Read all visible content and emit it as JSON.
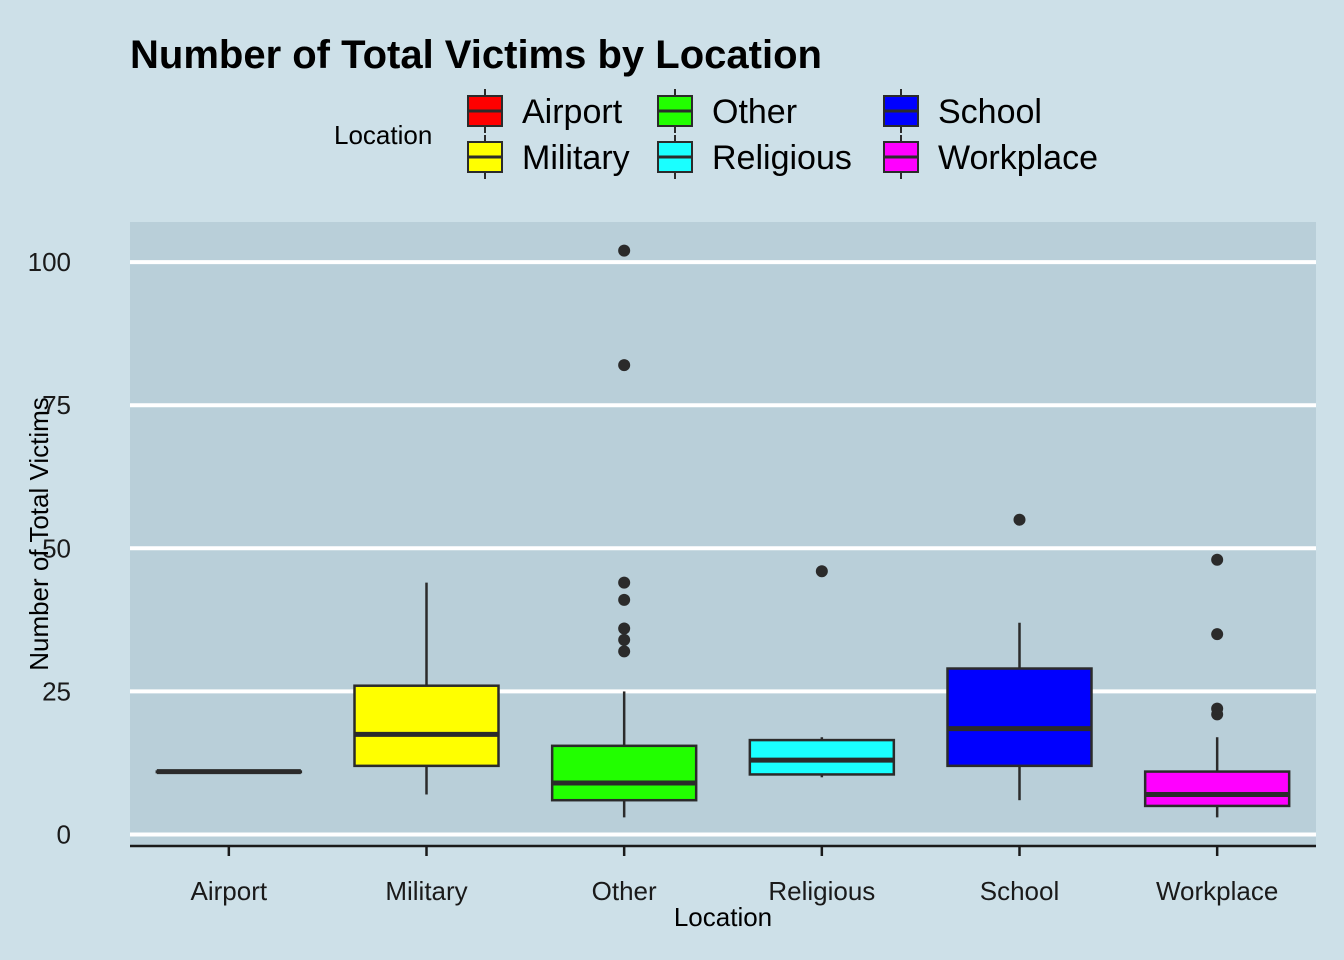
{
  "chart_data": {
    "type": "box",
    "title": "Number of Total Victims by Location",
    "xlabel": "Location",
    "ylabel": "Number of Total Victims",
    "ylim": [
      -2,
      107
    ],
    "yticks": [
      0,
      25,
      50,
      75,
      100
    ],
    "grid": "horizontal major lines",
    "legend": {
      "title": "Location",
      "placement": "top",
      "entries": [
        "Airport",
        "Other",
        "School",
        "Military",
        "Religious",
        "Workplace"
      ]
    },
    "categories": [
      "Airport",
      "Military",
      "Other",
      "Religious",
      "School",
      "Workplace"
    ],
    "series": [
      {
        "name": "Airport",
        "color": "#ff0000",
        "min": 11,
        "q1": 11,
        "median": 11,
        "q3": 11,
        "max": 11,
        "outliers": []
      },
      {
        "name": "Military",
        "color": "#ffff00",
        "min": 7,
        "q1": 12,
        "median": 17.5,
        "q3": 26,
        "max": 44,
        "outliers": []
      },
      {
        "name": "Other",
        "color": "#22ff00",
        "min": 3,
        "q1": 6,
        "median": 9,
        "q3": 15.5,
        "max": 25,
        "outliers": [
          32,
          34,
          36,
          41,
          44,
          82,
          102
        ]
      },
      {
        "name": "Religious",
        "color": "#1affff",
        "min": 10,
        "q1": 10.5,
        "median": 13,
        "q3": 16.5,
        "max": 17,
        "outliers": [
          46
        ]
      },
      {
        "name": "School",
        "color": "#0000ff",
        "min": 6,
        "q1": 12,
        "median": 18.5,
        "q3": 29,
        "max": 37,
        "outliers": [
          55
        ]
      },
      {
        "name": "Workplace",
        "color": "#ff00ff",
        "min": 3,
        "q1": 5,
        "median": 7,
        "q3": 11,
        "max": 17,
        "outliers": [
          21,
          22,
          35,
          48
        ]
      }
    ],
    "colors": {
      "page_background": "#cde0e8",
      "panel_background": "#b9cfd9",
      "gridline": "#ffffff",
      "box_outline": "#2b2b2b"
    }
  }
}
